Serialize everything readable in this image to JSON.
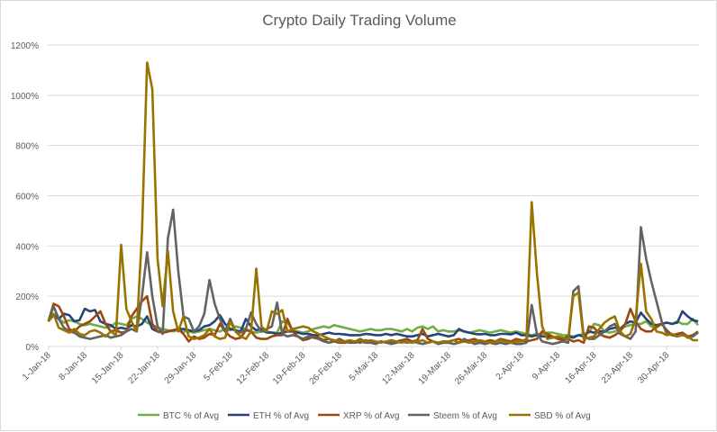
{
  "chart_data": {
    "type": "line",
    "title": "Crypto Daily Trading Volume",
    "xlabel": "",
    "ylabel": "",
    "ylim": [
      0,
      1200
    ],
    "yticks": [
      "0%",
      "200%",
      "400%",
      "600%",
      "800%",
      "1000%",
      "1200%"
    ],
    "ytick_values": [
      0,
      200,
      400,
      600,
      800,
      1000,
      1200
    ],
    "x_start": "1-Jan-18",
    "x_end": "6-May-18",
    "xtick_labels": [
      "1-Jan-18",
      "8-Jan-18",
      "15-Jan-18",
      "22-Jan-18",
      "29-Jan-18",
      "5-Feb-18",
      "12-Feb-18",
      "19-Feb-18",
      "26-Feb-18",
      "5-Mar-18",
      "12-Mar-18",
      "19-Mar-18",
      "26-Mar-18",
      "2-Apr-18",
      "9-Apr-18",
      "16-Apr-18",
      "23-Apr-18",
      "30-Apr-18"
    ],
    "grid": true,
    "legend_position": "bottom",
    "series": [
      {
        "name": "BTC % of Avg",
        "color": "#70ad47",
        "values": [
          100,
          130,
          110,
          95,
          105,
          100,
          90,
          85,
          90,
          85,
          80,
          75,
          80,
          95,
          90,
          85,
          110,
          120,
          110,
          95,
          85,
          75,
          70,
          65,
          60,
          65,
          60,
          60,
          55,
          60,
          65,
          70,
          65,
          60,
          70,
          65,
          80,
          75,
          70,
          60,
          55,
          60,
          60,
          55,
          55,
          100,
          95,
          65,
          60,
          55,
          60,
          70,
          75,
          80,
          75,
          85,
          80,
          75,
          70,
          65,
          60,
          65,
          70,
          65,
          65,
          70,
          70,
          65,
          60,
          70,
          60,
          75,
          80,
          70,
          80,
          60,
          65,
          60,
          60,
          65,
          60,
          55,
          60,
          65,
          60,
          55,
          60,
          65,
          60,
          55,
          60,
          55,
          50,
          45,
          50,
          50,
          55,
          55,
          50,
          45,
          45,
          40,
          45,
          50,
          55,
          90,
          85,
          60,
          55,
          60,
          70,
          80,
          85,
          90,
          90,
          100,
          80,
          75,
          90,
          95,
          90,
          100,
          90,
          90,
          110,
          85
        ]
      },
      {
        "name": "ETH % of Avg",
        "color": "#264478",
        "values": [
          100,
          125,
          110,
          130,
          125,
          100,
          105,
          150,
          140,
          145,
          100,
          90,
          85,
          70,
          75,
          70,
          85,
          80,
          90,
          120,
          70,
          60,
          55,
          60,
          65,
          70,
          70,
          65,
          60,
          65,
          80,
          85,
          100,
          125,
          90,
          70,
          65,
          60,
          110,
          80,
          65,
          70,
          55,
          55,
          50,
          55,
          60,
          60,
          55,
          50,
          50,
          45,
          45,
          50,
          55,
          50,
          50,
          48,
          45,
          45,
          45,
          50,
          48,
          45,
          45,
          50,
          45,
          50,
          45,
          40,
          40,
          45,
          50,
          40,
          45,
          50,
          45,
          40,
          45,
          70,
          60,
          55,
          50,
          48,
          50,
          45,
          45,
          50,
          50,
          48,
          55,
          45,
          45,
          40,
          45,
          40,
          40,
          35,
          35,
          30,
          40,
          35,
          45,
          40,
          60,
          55,
          60,
          60,
          70,
          75,
          70,
          90,
          100,
          95,
          135,
          110,
          90,
          85,
          90,
          95,
          90,
          95,
          140,
          120,
          105,
          100
        ]
      },
      {
        "name": "XRP % of Avg",
        "color": "#9e480e",
        "values": [
          100,
          170,
          160,
          120,
          70,
          60,
          80,
          90,
          100,
          120,
          140,
          90,
          60,
          65,
          55,
          60,
          120,
          150,
          180,
          200,
          90,
          60,
          55,
          60,
          65,
          70,
          50,
          20,
          40,
          30,
          35,
          50,
          45,
          90,
          60,
          40,
          30,
          35,
          65,
          60,
          35,
          30,
          30,
          40,
          45,
          45,
          110,
          60,
          40,
          25,
          30,
          40,
          35,
          25,
          30,
          20,
          15,
          15,
          20,
          20,
          15,
          25,
          20,
          15,
          20,
          15,
          15,
          20,
          25,
          30,
          20,
          25,
          70,
          30,
          20,
          15,
          20,
          20,
          25,
          30,
          20,
          25,
          30,
          20,
          20,
          25,
          20,
          30,
          25,
          20,
          30,
          25,
          20,
          25,
          30,
          60,
          50,
          40,
          30,
          25,
          30,
          20,
          25,
          15,
          80,
          75,
          50,
          40,
          35,
          45,
          60,
          90,
          150,
          100,
          70,
          60,
          60,
          80,
          90,
          65,
          45,
          50,
          55,
          40,
          45,
          60
        ]
      },
      {
        "name": "Steem % of Avg",
        "color": "#636363",
        "values": [
          100,
          160,
          110,
          75,
          60,
          55,
          40,
          35,
          30,
          35,
          40,
          45,
          35,
          40,
          45,
          60,
          70,
          60,
          200,
          375,
          200,
          80,
          50,
          430,
          545,
          300,
          120,
          110,
          60,
          80,
          130,
          265,
          170,
          110,
          60,
          110,
          60,
          55,
          70,
          135,
          90,
          60,
          70,
          80,
          175,
          50,
          40,
          45,
          40,
          30,
          40,
          35,
          30,
          20,
          15,
          20,
          30,
          20,
          15,
          15,
          20,
          15,
          15,
          10,
          20,
          15,
          10,
          15,
          20,
          15,
          20,
          15,
          10,
          15,
          20,
          10,
          15,
          15,
          10,
          15,
          30,
          20,
          10,
          15,
          10,
          15,
          10,
          15,
          10,
          15,
          10,
          10,
          15,
          165,
          50,
          20,
          15,
          10,
          15,
          20,
          15,
          220,
          240,
          40,
          30,
          30,
          45,
          60,
          80,
          90,
          50,
          40,
          30,
          60,
          475,
          350,
          260,
          180,
          100,
          50,
          45,
          40,
          50,
          35,
          40,
          55
        ]
      },
      {
        "name": "SBD % of Avg",
        "color": "#997300",
        "values": [
          100,
          130,
          75,
          65,
          55,
          70,
          50,
          45,
          60,
          65,
          55,
          40,
          60,
          45,
          405,
          150,
          100,
          60,
          450,
          1130,
          1025,
          350,
          160,
          380,
          140,
          60,
          120,
          40,
          30,
          35,
          45,
          70,
          40,
          30,
          35,
          100,
          60,
          40,
          30,
          60,
          310,
          80,
          60,
          140,
          130,
          145,
          60,
          70,
          75,
          80,
          75,
          60,
          50,
          40,
          30,
          25,
          20,
          20,
          25,
          20,
          30,
          20,
          25,
          20,
          15,
          20,
          25,
          20,
          15,
          20,
          15,
          20,
          25,
          15,
          20,
          15,
          20,
          20,
          25,
          15,
          20,
          15,
          20,
          25,
          20,
          15,
          20,
          25,
          20,
          15,
          20,
          20,
          30,
          575,
          290,
          80,
          30,
          35,
          40,
          35,
          30,
          200,
          215,
          30,
          35,
          40,
          70,
          95,
          110,
          120,
          60,
          40,
          50,
          110,
          330,
          140,
          110,
          60,
          55,
          45,
          50,
          40,
          45,
          40,
          25,
          25
        ]
      }
    ]
  }
}
